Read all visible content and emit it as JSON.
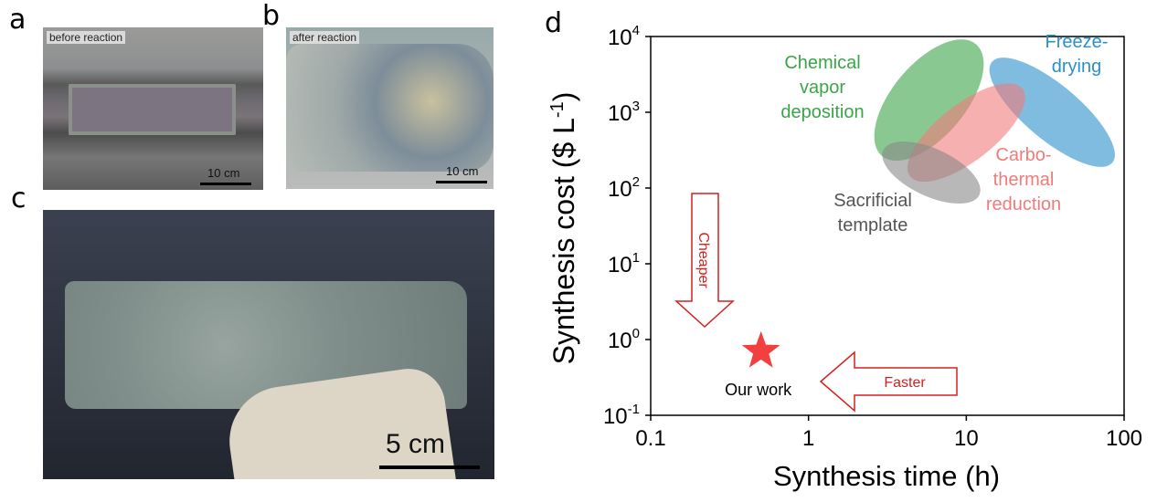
{
  "panels": {
    "a": {
      "letter": "a",
      "tag": "before reaction",
      "scale": "10 cm"
    },
    "b": {
      "letter": "b",
      "tag": "after reaction",
      "scale": "10 cm"
    },
    "c": {
      "letter": "c",
      "scale": "5 cm"
    },
    "d": {
      "letter": "d"
    }
  },
  "chart_data": {
    "type": "scatter",
    "xlabel": "Synthesis time (h)",
    "ylabel": "Synthesis cost ($ L",
    "ylabel_sup": "-1",
    "ylabel_end": ")",
    "x_scale": "log",
    "y_scale": "log",
    "xlim": [
      0.1,
      100
    ],
    "ylim": [
      0.1,
      10000
    ],
    "x_ticks": [
      "0.1",
      "1",
      "10",
      "100"
    ],
    "y_ticks": [
      {
        "base": "10",
        "exp": "4"
      },
      {
        "base": "10",
        "exp": "3"
      },
      {
        "base": "10",
        "exp": "2"
      },
      {
        "base": "10",
        "exp": "1"
      },
      {
        "base": "10",
        "exp": "0"
      },
      {
        "base": "10",
        "exp": "-1"
      }
    ],
    "grid": false,
    "regions": [
      {
        "label_lines": [
          "Chemical",
          "vapor",
          "deposition"
        ],
        "color": "#3aa548",
        "time": 5.8,
        "cost": 1450
      },
      {
        "label_lines": [
          "Freeze-",
          "drying"
        ],
        "color": "#2a90cc",
        "time": 35,
        "cost": 1000
      },
      {
        "label_lines": [
          "Carbo-",
          "thermal",
          "reduction"
        ],
        "color": "#f07b7b",
        "time": 10,
        "cost": 540
      },
      {
        "label_lines": [
          "Sacrificial",
          "template"
        ],
        "color": "#888888",
        "label_color": "#555555",
        "time": 6,
        "cost": 160
      }
    ],
    "points": [
      {
        "label": "Our work",
        "time": 0.5,
        "cost": 0.7,
        "marker": "star",
        "color": "#f24040"
      }
    ],
    "annotations": [
      {
        "text": "Cheaper",
        "direction": "down",
        "color": "#d42020"
      },
      {
        "text": "Faster",
        "direction": "left",
        "color": "#d42020"
      }
    ]
  }
}
